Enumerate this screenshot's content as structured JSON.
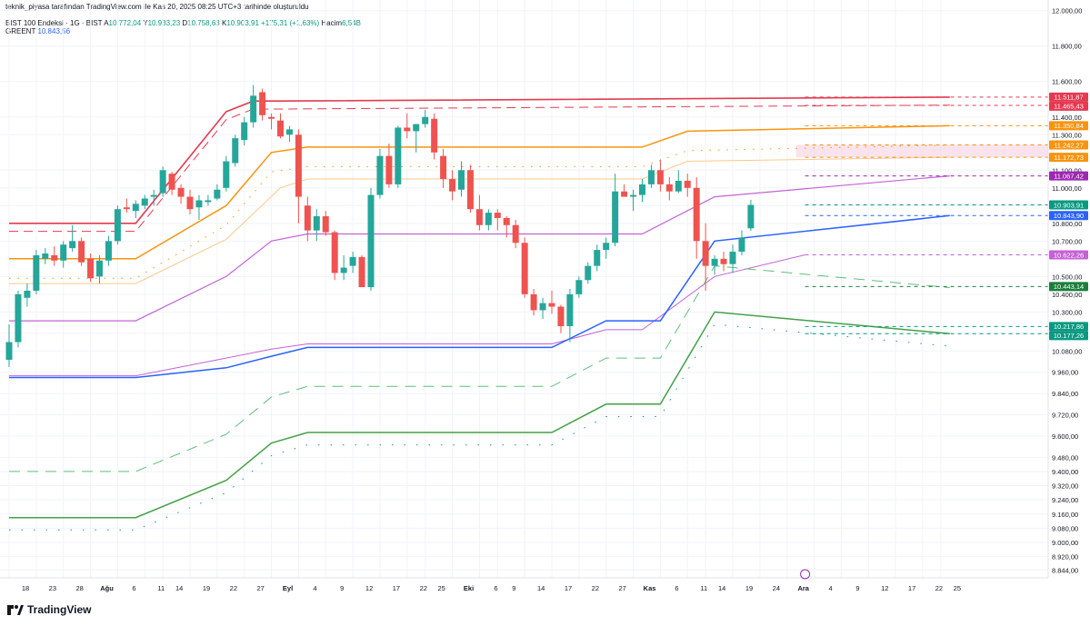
{
  "header": {
    "attribution": "teknik_piyasa tarafından TradingView.com ile Kas 20, 2025 08:25 UTC+3 tarihinde oluşturuldu",
    "symbol": "BIST 100 Endeksi · 1G · BIST",
    "ohlc": [
      {
        "k": "A",
        "v": "10.772,04"
      },
      {
        "k": "Y",
        "v": "10.933,23"
      },
      {
        "k": "D",
        "v": "10.758,63"
      },
      {
        "k": "K",
        "v": "10.903,91"
      }
    ],
    "change": "+175,31 (+1,63%)",
    "volume_label": "Hacim",
    "volume_value": "6,54B",
    "indicator_name": "GREENT",
    "indicator_value": "10.843,56"
  },
  "brand": "TradingView",
  "colors": {
    "up": "#26a69a",
    "down": "#ef5350",
    "red_line": "#e53950",
    "orange_line": "#f7940f",
    "orange_light": "#f9c98a",
    "violet": "#c462d6",
    "violet_dark": "#9c27b0",
    "blue": "#2962ff",
    "green": "#43a047",
    "green_dark": "#1b7e3c",
    "teal": "#089981",
    "grid": "#f0f3fa",
    "axis_text": "#131722"
  },
  "chart_data": {
    "type": "candlestick",
    "y_axis": {
      "range": [
        8800,
        12060
      ],
      "ticks": [
        "12.000,00",
        "11.800,00",
        "11.600,00",
        "11.400,00",
        "11.300,00",
        "11.100,00",
        "11.000,00",
        "10.900,00",
        "10.800,00",
        "10.700,00",
        "10.500,00",
        "10.400,00",
        "10.300,00",
        "10.180,00",
        "10.080,00",
        "9.960,00",
        "9.840,00",
        "9.720,00",
        "9.600,00",
        "9.480,00",
        "9.400,00",
        "9.320,00",
        "9.240,00",
        "9.160,00",
        "9.080,00",
        "9.000,00",
        "8.920,00",
        "8.844,00"
      ],
      "tick_values": [
        12000,
        11800,
        11600,
        11400,
        11300,
        11100,
        11000,
        10900,
        10800,
        10700,
        10500,
        10400,
        10300,
        10180,
        10080,
        9960,
        9840,
        9720,
        9600,
        9480,
        9400,
        9320,
        9240,
        9160,
        9080,
        9000,
        8920,
        8844
      ]
    },
    "x_axis": {
      "labels": [
        "18",
        "23",
        "28",
        "Ağu",
        "6",
        "11",
        "14",
        "19",
        "22",
        "27",
        "Eyl",
        "4",
        "9",
        "12",
        "17",
        "22",
        "25",
        "Eki",
        "6",
        "9",
        "14",
        "17",
        "22",
        "27",
        "Kas",
        "6",
        "11",
        "14",
        "19",
        "24",
        "Ara",
        "4",
        "9",
        "12",
        "17",
        "22",
        "25"
      ],
      "label_index": [
        0,
        3,
        6,
        9,
        12,
        15,
        17,
        20,
        23,
        26,
        29,
        32,
        35,
        38,
        41,
        44,
        46,
        49,
        52,
        54,
        57,
        60,
        63,
        66,
        69,
        72,
        75,
        77,
        80,
        83,
        86,
        89,
        92,
        95,
        98,
        101,
        103
      ],
      "bold": [
        "Ağu",
        "Eyl",
        "Eki",
        "Kas",
        "Ara"
      ]
    },
    "candles": [
      [
        10030,
        10230,
        9990,
        10130
      ],
      [
        10130,
        10420,
        10100,
        10400
      ],
      [
        10380,
        10460,
        10330,
        10420
      ],
      [
        10420,
        10650,
        10400,
        10620
      ],
      [
        10600,
        10660,
        10570,
        10630
      ],
      [
        10620,
        10670,
        10560,
        10590
      ],
      [
        10590,
        10700,
        10550,
        10680
      ],
      [
        10660,
        10790,
        10640,
        10700
      ],
      [
        10700,
        10720,
        10560,
        10580
      ],
      [
        10600,
        10630,
        10470,
        10490
      ],
      [
        10500,
        10620,
        10460,
        10590
      ],
      [
        10590,
        10730,
        10560,
        10700
      ],
      [
        10700,
        10900,
        10680,
        10880
      ],
      [
        10890,
        10940,
        10860,
        10880
      ],
      [
        10870,
        10930,
        10830,
        10910
      ],
      [
        10900,
        10960,
        10880,
        10940
      ],
      [
        10950,
        10990,
        10900,
        10960
      ],
      [
        10970,
        11120,
        10950,
        11100
      ],
      [
        11080,
        11090,
        10960,
        10990
      ],
      [
        11000,
        11020,
        10910,
        10950
      ],
      [
        10950,
        10990,
        10850,
        10880
      ],
      [
        10890,
        10960,
        10820,
        10930
      ],
      [
        10920,
        10960,
        10900,
        10930
      ],
      [
        10940,
        11020,
        10930,
        10990
      ],
      [
        11000,
        11180,
        10980,
        11150
      ],
      [
        11140,
        11300,
        11120,
        11280
      ],
      [
        11270,
        11400,
        11240,
        11370
      ],
      [
        11370,
        11580,
        11340,
        11520
      ],
      [
        11540,
        11560,
        11380,
        11410
      ],
      [
        11400,
        11420,
        11330,
        11390
      ],
      [
        11380,
        11420,
        11280,
        11290
      ],
      [
        11300,
        11350,
        11260,
        11330
      ],
      [
        11300,
        11330,
        10800,
        10950
      ],
      [
        10900,
        10950,
        10700,
        10760
      ],
      [
        10760,
        10880,
        10700,
        10840
      ],
      [
        10840,
        10870,
        10730,
        10750
      ],
      [
        10750,
        10760,
        10480,
        10520
      ],
      [
        10520,
        10620,
        10480,
        10550
      ],
      [
        10560,
        10640,
        10520,
        10610
      ],
      [
        10610,
        10620,
        10440,
        10440
      ],
      [
        10440,
        11000,
        10420,
        10960
      ],
      [
        10960,
        11220,
        10940,
        11180
      ],
      [
        11180,
        11250,
        11000,
        11020
      ],
      [
        11020,
        11350,
        11000,
        11340
      ],
      [
        11340,
        11420,
        11280,
        11320
      ],
      [
        11320,
        11360,
        11200,
        11360
      ],
      [
        11360,
        11440,
        11340,
        11400
      ],
      [
        11390,
        11420,
        11160,
        11200
      ],
      [
        11180,
        11220,
        11000,
        11050
      ],
      [
        11050,
        11100,
        10930,
        10980
      ],
      [
        10990,
        11150,
        10950,
        11100
      ],
      [
        11100,
        11130,
        10860,
        10880
      ],
      [
        10880,
        10960,
        10760,
        10790
      ],
      [
        10790,
        10880,
        10760,
        10860
      ],
      [
        10860,
        10880,
        10760,
        10830
      ],
      [
        10830,
        10840,
        10720,
        10790
      ],
      [
        10790,
        10820,
        10660,
        10690
      ],
      [
        10690,
        10720,
        10380,
        10400
      ],
      [
        10400,
        10430,
        10280,
        10310
      ],
      [
        10310,
        10380,
        10260,
        10350
      ],
      [
        10350,
        10420,
        10290,
        10330
      ],
      [
        10330,
        10340,
        10180,
        10220
      ],
      [
        10220,
        10430,
        10130,
        10400
      ],
      [
        10400,
        10500,
        10380,
        10480
      ],
      [
        10480,
        10580,
        10460,
        10560
      ],
      [
        10560,
        10680,
        10530,
        10650
      ],
      [
        10650,
        10720,
        10600,
        10690
      ],
      [
        10690,
        11080,
        10670,
        10980
      ],
      [
        10980,
        11020,
        10950,
        10950
      ],
      [
        10950,
        10990,
        10870,
        10960
      ],
      [
        10960,
        11050,
        10920,
        11020
      ],
      [
        11020,
        11130,
        11000,
        11100
      ],
      [
        11100,
        11160,
        10980,
        11020
      ],
      [
        11020,
        11060,
        10930,
        10980
      ],
      [
        10980,
        11100,
        10970,
        11040
      ],
      [
        11040,
        11080,
        10950,
        11000
      ],
      [
        11000,
        11060,
        10600,
        10700
      ],
      [
        10700,
        10800,
        10420,
        10560
      ],
      [
        10560,
        10620,
        10510,
        10600
      ],
      [
        10600,
        10640,
        10530,
        10570
      ],
      [
        10570,
        10680,
        10520,
        10640
      ],
      [
        10640,
        10760,
        10620,
        10720
      ],
      [
        10772,
        10933,
        10758,
        10904
      ]
    ],
    "price_labels": [
      {
        "value": 11511.87,
        "text": "11.511,87",
        "color": "#e53950"
      },
      {
        "value": 11465.43,
        "text": "11.465,43",
        "color": "#e53950"
      },
      {
        "value": 11350.84,
        "text": "11.350,84",
        "color": "#f7940f"
      },
      {
        "value": 11242.27,
        "text": "11.242,27",
        "color": "#f7940f"
      },
      {
        "value": 11172.73,
        "text": "11.172,73",
        "color": "#f7940f"
      },
      {
        "value": 11067.42,
        "text": "11.067,42",
        "color": "#9c27b0"
      },
      {
        "value": 10903.91,
        "text": "10.903,91",
        "color": "#089981"
      },
      {
        "value": 10843.9,
        "text": "10.843,90",
        "color": "#2962ff"
      },
      {
        "value": 10622.26,
        "text": "10.622,26",
        "color": "#c462d6"
      },
      {
        "value": 10443.14,
        "text": "10.443,14",
        "color": "#1b7e3c"
      },
      {
        "value": 10217.86,
        "text": "10.217,86",
        "color": "#089981"
      },
      {
        "value": 10177.26,
        "text": "10.177,26",
        "color": "#089981"
      }
    ],
    "levels": {
      "red_solid": [
        [
          0,
          10800
        ],
        [
          14,
          10800
        ],
        [
          24,
          11430
        ],
        [
          27,
          11490
        ],
        [
          30,
          11490
        ],
        [
          104,
          11511.87
        ]
      ],
      "orange_solid": [
        [
          0,
          10600
        ],
        [
          14,
          10600
        ],
        [
          24,
          10900
        ],
        [
          29,
          11200
        ],
        [
          33,
          11230
        ],
        [
          70,
          11230
        ],
        [
          75,
          11320
        ],
        [
          104,
          11350.84
        ]
      ],
      "orange_light": [
        [
          0,
          10460
        ],
        [
          14,
          10460
        ],
        [
          24,
          10710
        ],
        [
          30,
          11000
        ],
        [
          33,
          11050
        ],
        [
          70,
          11050
        ],
        [
          75,
          11150
        ],
        [
          104,
          11172.73
        ]
      ],
      "violet": [
        [
          0,
          10250
        ],
        [
          14,
          10250
        ],
        [
          24,
          10500
        ],
        [
          29,
          10700
        ],
        [
          33,
          10740
        ],
        [
          70,
          10740
        ],
        [
          78,
          10950
        ],
        [
          104,
          11067.42
        ]
      ],
      "violet_lower": [
        [
          0,
          9940
        ],
        [
          14,
          9940
        ],
        [
          24,
          10040
        ],
        [
          29,
          10090
        ],
        [
          33,
          10120
        ],
        [
          60,
          10120
        ],
        [
          66,
          10200
        ],
        [
          70,
          10200
        ],
        [
          78,
          10500
        ],
        [
          88,
          10622.26
        ]
      ],
      "blue": [
        [
          0,
          9930
        ],
        [
          14,
          9930
        ],
        [
          24,
          9985
        ],
        [
          29,
          10050
        ],
        [
          33,
          10100
        ],
        [
          60,
          10100
        ],
        [
          66,
          10250
        ],
        [
          72,
          10250
        ],
        [
          78,
          10700
        ],
        [
          104,
          10843.9
        ]
      ],
      "green": [
        [
          0,
          9140
        ],
        [
          14,
          9140
        ],
        [
          24,
          9350
        ],
        [
          29,
          9560
        ],
        [
          33,
          9620
        ],
        [
          60,
          9620
        ],
        [
          66,
          9780
        ],
        [
          72,
          9780
        ],
        [
          78,
          10300
        ],
        [
          104,
          10177.26
        ]
      ]
    }
  }
}
